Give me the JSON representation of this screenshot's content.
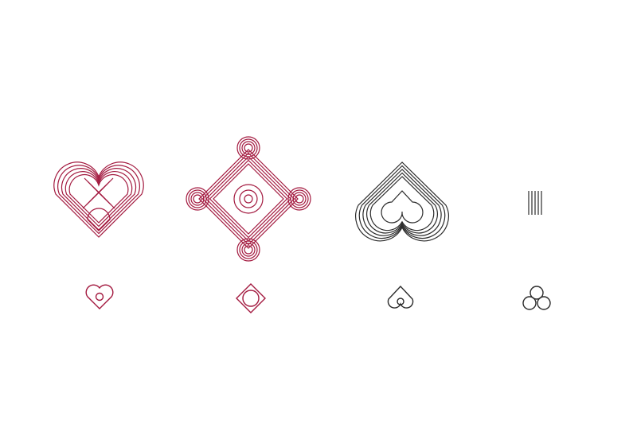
{
  "palette": {
    "red": "#a3193f",
    "dark": "#2b2b2b",
    "background": "#ffffff"
  },
  "emblems": [
    {
      "icon": "interlaced-heart-icon",
      "color": "red"
    },
    {
      "icon": "interlaced-diamond-cross-icon",
      "color": "red"
    },
    {
      "icon": "interlaced-spade-icon",
      "color": "dark"
    },
    {
      "icon": "interlaced-trefoil-icon",
      "color": "dark"
    }
  ],
  "marks": [
    {
      "icon": "heart-mark-icon",
      "color": "red"
    },
    {
      "icon": "diamond-circle-mark-icon",
      "color": "red"
    },
    {
      "icon": "spade-mark-icon",
      "color": "dark"
    },
    {
      "icon": "trefoil-mark-icon",
      "color": "dark"
    }
  ]
}
